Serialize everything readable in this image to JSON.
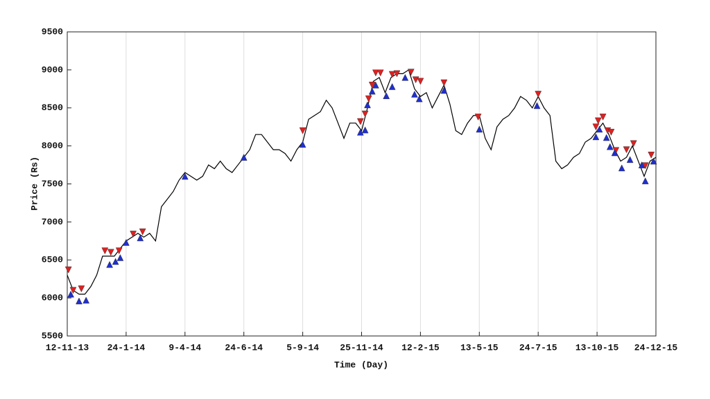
{
  "chart_data": {
    "type": "line",
    "xlabel": "Time (Day)",
    "ylabel": "Price (Rs)",
    "xlim": [
      0,
      500
    ],
    "ylim": [
      5500,
      9500
    ],
    "yticks": [
      5500,
      6000,
      6500,
      7000,
      7500,
      8000,
      8500,
      9000,
      9500
    ],
    "xticks": [
      {
        "value": 0,
        "label": "12-11-13"
      },
      {
        "value": 50,
        "label": "24-1-14"
      },
      {
        "value": 100,
        "label": "9-4-14"
      },
      {
        "value": 150,
        "label": "24-6-14"
      },
      {
        "value": 200,
        "label": "5-9-14"
      },
      {
        "value": 250,
        "label": "25-11-14"
      },
      {
        "value": 300,
        "label": "12-2-15"
      },
      {
        "value": 350,
        "label": "13-5-15"
      },
      {
        "value": 400,
        "label": "24-7-15"
      },
      {
        "value": 450,
        "label": "13-10-15"
      },
      {
        "value": 500,
        "label": "24-12-15"
      }
    ],
    "grid": "x",
    "series": [
      {
        "color": "#000000",
        "marker": "none",
        "x": [
          0,
          5,
          10,
          15,
          20,
          25,
          30,
          35,
          40,
          45,
          50,
          55,
          60,
          65,
          70,
          75,
          80,
          85,
          90,
          95,
          100,
          105,
          110,
          115,
          120,
          125,
          130,
          135,
          140,
          145,
          150,
          155,
          160,
          165,
          170,
          175,
          180,
          185,
          190,
          195,
          200,
          205,
          210,
          215,
          220,
          225,
          230,
          235,
          240,
          245,
          250,
          255,
          260,
          265,
          270,
          275,
          280,
          285,
          290,
          295,
          300,
          305,
          310,
          315,
          320,
          325,
          330,
          335,
          340,
          345,
          350,
          355,
          360,
          365,
          370,
          375,
          380,
          385,
          390,
          395,
          400,
          405,
          410,
          415,
          420,
          425,
          430,
          435,
          440,
          445,
          450,
          455,
          460,
          465,
          470,
          475,
          480,
          485,
          490,
          495,
          500
        ],
        "values": [
          6300,
          6100,
          6050,
          6050,
          6150,
          6300,
          6550,
          6550,
          6550,
          6650,
          6750,
          6800,
          6850,
          6800,
          6850,
          6750,
          7200,
          7300,
          7400,
          7550,
          7650,
          7600,
          7550,
          7600,
          7750,
          7700,
          7800,
          7700,
          7650,
          7750,
          7850,
          7950,
          8150,
          8150,
          8050,
          7950,
          7950,
          7900,
          7800,
          7950,
          8050,
          8350,
          8400,
          8450,
          8600,
          8500,
          8300,
          8100,
          8300,
          8300,
          8200,
          8500,
          8850,
          8900,
          8700,
          8900,
          8950,
          8950,
          9000,
          8750,
          8650,
          8700,
          8500,
          8650,
          8800,
          8550,
          8200,
          8150,
          8300,
          8400,
          8400,
          8100,
          7950,
          8250,
          8350,
          8400,
          8500,
          8650,
          8600,
          8500,
          8650,
          8500,
          8400,
          7800,
          7700,
          7750,
          7850,
          7900,
          8050,
          8100,
          8200,
          8300,
          8150,
          7950,
          7800,
          7850,
          8000,
          7800,
          7600,
          7800,
          7850
        ]
      },
      {
        "color": "#e02020",
        "marker": "triangle-down",
        "x": [
          1,
          5,
          12,
          32,
          37,
          44,
          56,
          64,
          200,
          249,
          253,
          256,
          259,
          262,
          266,
          276,
          280,
          292,
          296,
          300,
          320,
          349,
          400,
          449,
          451,
          455,
          459,
          462,
          466,
          475,
          481,
          491,
          496
        ],
        "values": [
          6370,
          6100,
          6120,
          6620,
          6600,
          6620,
          6840,
          6870,
          8200,
          8320,
          8420,
          8620,
          8800,
          8960,
          8960,
          8940,
          8950,
          8970,
          8870,
          8850,
          8830,
          8380,
          8680,
          8250,
          8330,
          8380,
          8200,
          8180,
          7940,
          7950,
          8030,
          7740,
          7880
        ]
      },
      {
        "color": "#1f2fd0",
        "marker": "triangle-up",
        "x": [
          3,
          10,
          16,
          36,
          41,
          45,
          50,
          62,
          100,
          150,
          200,
          249,
          253,
          255,
          259,
          262,
          271,
          276,
          287,
          295,
          299,
          320,
          350,
          399,
          449,
          452,
          458,
          461,
          465,
          471,
          478,
          488,
          491,
          498
        ],
        "values": [
          6050,
          5960,
          5970,
          6440,
          6480,
          6530,
          6730,
          6790,
          7600,
          7850,
          8020,
          8180,
          8210,
          8540,
          8720,
          8800,
          8660,
          8780,
          8900,
          8680,
          8620,
          8730,
          8220,
          8530,
          8120,
          8220,
          8110,
          7990,
          7910,
          7710,
          7820,
          7750,
          7540,
          7800
        ]
      }
    ]
  }
}
